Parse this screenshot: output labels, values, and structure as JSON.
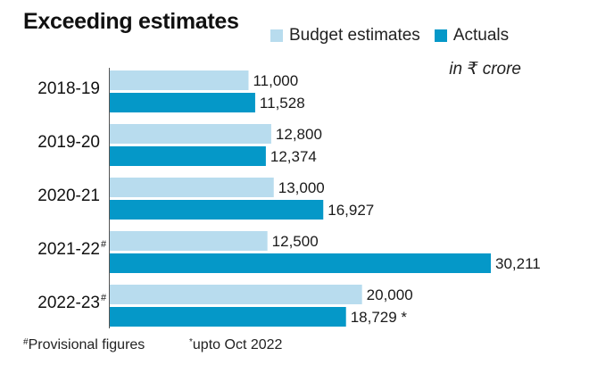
{
  "title": "Exceeding estimates",
  "unit_note": "in ₹ crore",
  "legend": [
    {
      "label": "Budget estimates",
      "color": "#b8dcee"
    },
    {
      "label": "Actuals",
      "color": "#0598c8"
    }
  ],
  "footnotes": {
    "provisional_mark": "#",
    "provisional_text": "Provisional figures",
    "upto_mark": "*",
    "upto_text": "upto Oct 2022"
  },
  "chart_data": {
    "type": "bar",
    "orientation": "horizontal",
    "title": "Exceeding estimates",
    "categories": [
      "2018-19",
      "2019-20",
      "2020-21",
      "2021-22",
      "2022-23"
    ],
    "category_marks": [
      "",
      "",
      "",
      "#",
      "#"
    ],
    "series": [
      {
        "name": "Budget estimates",
        "color": "#b8dcee",
        "values": [
          11000,
          12800,
          13000,
          12500,
          20000
        ],
        "labels": [
          "11,000",
          "12,800",
          "13,000",
          "12,500",
          "20,000"
        ]
      },
      {
        "name": "Actuals",
        "color": "#0598c8",
        "values": [
          11528,
          12374,
          16927,
          30211,
          18729
        ],
        "labels": [
          "11,528",
          "12,374",
          "16,927",
          "30,211",
          "18,729 *"
        ]
      }
    ],
    "xlim": [
      0,
      30211
    ],
    "grid": false,
    "legend_position": "top-right"
  }
}
